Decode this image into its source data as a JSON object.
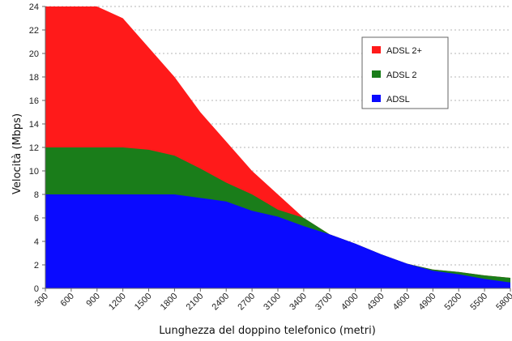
{
  "chart_data": {
    "type": "area",
    "stacked": false,
    "xlabel": "Lunghezza del doppino telefonico (metri)",
    "ylabel": "Velocità (Mbps)",
    "ylim": [
      0,
      24
    ],
    "yticks": [
      "0",
      "2",
      "4",
      "6",
      "8",
      "10",
      "12",
      "14",
      "16",
      "18",
      "20",
      "22",
      "24"
    ],
    "xticks": [
      "300",
      "600",
      "900",
      "1200",
      "1500",
      "1800",
      "2100",
      "2400",
      "2700",
      "3100",
      "3400",
      "3700",
      "4000",
      "4300",
      "4600",
      "4900",
      "5200",
      "5500",
      "5800"
    ],
    "grid": "horizontal dotted",
    "legend_position": "top-right",
    "series": [
      {
        "name": "ADSL 2+",
        "color": "#ff1a1a",
        "values": [
          24,
          24,
          24,
          23,
          20.5,
          18,
          15,
          12.5,
          10,
          8,
          6,
          4.6,
          3.8,
          2.9,
          2.1,
          1.6,
          1.4,
          1.1,
          0.9
        ]
      },
      {
        "name": "ADSL 2",
        "color": "#1a7d1a",
        "values": [
          12,
          12,
          12,
          12,
          11.8,
          11.3,
          10.2,
          9,
          8,
          6.7,
          6,
          4.6,
          3.8,
          2.9,
          2.1,
          1.6,
          1.4,
          1.1,
          0.9
        ]
      },
      {
        "name": "ADSL",
        "color": "#0a0aff",
        "values": [
          8,
          8,
          8,
          8,
          8,
          8,
          7.7,
          7.4,
          6.6,
          6.1,
          5.3,
          4.6,
          3.8,
          2.9,
          2.1,
          1.5,
          1.2,
          0.8,
          0.5
        ]
      }
    ]
  }
}
